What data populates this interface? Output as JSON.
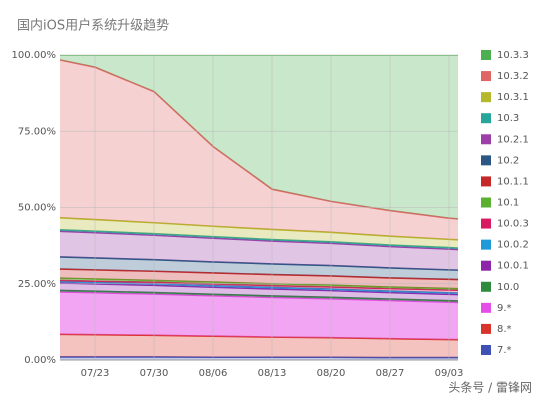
{
  "chart_data": {
    "type": "stacked_area",
    "title": "国内iOS用户系统升级趋势",
    "watermark": "头条号 / 雷锋网",
    "categories": [
      null,
      "07/23",
      "07/30",
      "08/06",
      "08/13",
      "08/20",
      "08/27",
      "09/03",
      null
    ],
    "ylim": [
      0,
      100
    ],
    "yticks": [
      {
        "value": 0,
        "label": "0.00%"
      },
      {
        "value": 25,
        "label": "25.00%"
      },
      {
        "value": 50,
        "label": "50.00%"
      },
      {
        "value": 75,
        "label": "75.00%"
      },
      {
        "value": 100,
        "label": "100.00%"
      }
    ],
    "grid": true,
    "legend": "right",
    "series": [
      {
        "name": "10.3.3",
        "color": "#4caf50",
        "values": [
          0,
          4,
          12,
          30,
          44,
          48,
          51,
          53.5,
          55
        ]
      },
      {
        "name": "10.3.2",
        "color": "#e06666",
        "values": [
          53,
          49.95,
          43,
          26.15,
          13.2,
          10.15,
          8.4,
          6.95,
          6.5
        ]
      },
      {
        "name": "10.3.1",
        "color": "#b5b82b",
        "values": [
          4,
          3.8,
          3.6,
          3.4,
          3.3,
          3.1,
          2.9,
          2.7,
          2.5
        ]
      },
      {
        "name": "10.3",
        "color": "#26a69a",
        "values": [
          0.5,
          0.5,
          0.5,
          0.5,
          0.5,
          0.5,
          0.5,
          0.5,
          0.5
        ]
      },
      {
        "name": "10.2.1",
        "color": "#9c3fa8",
        "values": [
          8.5,
          8.3,
          8,
          7.8,
          7.5,
          7.3,
          7,
          6.8,
          6.5
        ]
      },
      {
        "name": "10.2",
        "color": "#2a5783",
        "values": [
          4,
          3.9,
          3.8,
          3.6,
          3.5,
          3.4,
          3.3,
          3.1,
          3
        ]
      },
      {
        "name": "10.1.1",
        "color": "#c62828",
        "values": [
          3,
          3,
          3,
          3,
          3,
          3,
          3,
          3,
          3
        ]
      },
      {
        "name": "10.1",
        "color": "#5cb02f",
        "values": [
          0.7,
          0.7,
          0.6,
          0.6,
          0.6,
          0.6,
          0.5,
          0.5,
          0.5
        ]
      },
      {
        "name": "10.0.3",
        "color": "#d81b60",
        "values": [
          0.3,
          0.4,
          0.5,
          0.6,
          0.6,
          0.7,
          0.8,
          0.9,
          1
        ]
      },
      {
        "name": "10.0.2",
        "color": "#1e9ad6",
        "values": [
          0.5,
          0.5,
          0.5,
          0.5,
          0.5,
          0.5,
          0.5,
          0.5,
          0.5
        ]
      },
      {
        "name": "10.0.1",
        "color": "#8e24aa",
        "values": [
          2.5,
          2.4,
          2.4,
          2.3,
          2.3,
          2.2,
          2.1,
          2.1,
          2
        ]
      },
      {
        "name": "10.0",
        "color": "#2e8b3e",
        "values": [
          0.5,
          0.5,
          0.5,
          0.5,
          0.5,
          0.5,
          0.5,
          0.5,
          0.5
        ]
      },
      {
        "name": "9.*",
        "color": "#e64ce6",
        "values": [
          14,
          13.75,
          13.5,
          13.25,
          13,
          12.75,
          12.5,
          12.25,
          12
        ]
      },
      {
        "name": "8.*",
        "color": "#d9342b",
        "values": [
          7.5,
          7.3,
          7.1,
          6.9,
          6.6,
          6.4,
          6.2,
          5.9,
          5.7
        ]
      },
      {
        "name": "7.*",
        "color": "#3f51b5",
        "values": [
          1,
          1,
          1,
          0.9,
          0.9,
          0.9,
          0.8,
          0.8,
          0.8
        ]
      }
    ]
  }
}
